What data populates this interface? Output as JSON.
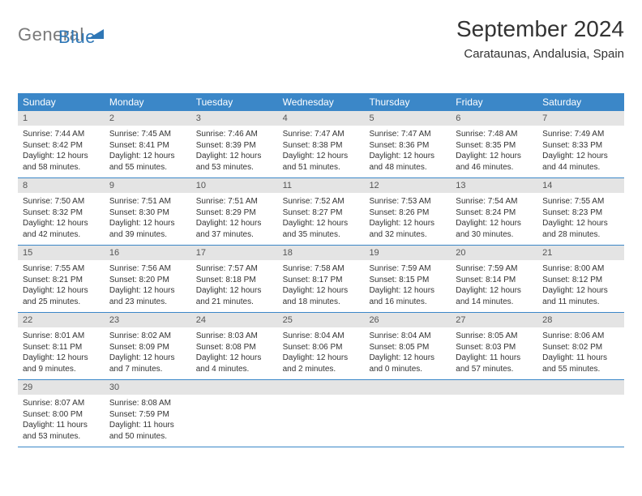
{
  "logo": {
    "gray": "General",
    "blue": "Blue"
  },
  "title": "September 2024",
  "location": "Carataunas, Andalusia, Spain",
  "colors": {
    "header_bg": "#3b87c8",
    "header_text": "#ffffff",
    "daynum_bg": "#e4e4e4",
    "daynum_text": "#555555",
    "body_text": "#333333",
    "logo_gray": "#7a7a7a",
    "logo_blue": "#2f77b6",
    "row_border": "#3b87c8"
  },
  "fonts": {
    "title_size": 28,
    "location_size": 15,
    "dow_size": 12,
    "daynum_size": 11,
    "body_size": 10
  },
  "dow": [
    "Sunday",
    "Monday",
    "Tuesday",
    "Wednesday",
    "Thursday",
    "Friday",
    "Saturday"
  ],
  "weeks": [
    [
      {
        "n": "1",
        "sr": "Sunrise: 7:44 AM",
        "ss": "Sunset: 8:42 PM",
        "dl1": "Daylight: 12 hours",
        "dl2": "and 58 minutes."
      },
      {
        "n": "2",
        "sr": "Sunrise: 7:45 AM",
        "ss": "Sunset: 8:41 PM",
        "dl1": "Daylight: 12 hours",
        "dl2": "and 55 minutes."
      },
      {
        "n": "3",
        "sr": "Sunrise: 7:46 AM",
        "ss": "Sunset: 8:39 PM",
        "dl1": "Daylight: 12 hours",
        "dl2": "and 53 minutes."
      },
      {
        "n": "4",
        "sr": "Sunrise: 7:47 AM",
        "ss": "Sunset: 8:38 PM",
        "dl1": "Daylight: 12 hours",
        "dl2": "and 51 minutes."
      },
      {
        "n": "5",
        "sr": "Sunrise: 7:47 AM",
        "ss": "Sunset: 8:36 PM",
        "dl1": "Daylight: 12 hours",
        "dl2": "and 48 minutes."
      },
      {
        "n": "6",
        "sr": "Sunrise: 7:48 AM",
        "ss": "Sunset: 8:35 PM",
        "dl1": "Daylight: 12 hours",
        "dl2": "and 46 minutes."
      },
      {
        "n": "7",
        "sr": "Sunrise: 7:49 AM",
        "ss": "Sunset: 8:33 PM",
        "dl1": "Daylight: 12 hours",
        "dl2": "and 44 minutes."
      }
    ],
    [
      {
        "n": "8",
        "sr": "Sunrise: 7:50 AM",
        "ss": "Sunset: 8:32 PM",
        "dl1": "Daylight: 12 hours",
        "dl2": "and 42 minutes."
      },
      {
        "n": "9",
        "sr": "Sunrise: 7:51 AM",
        "ss": "Sunset: 8:30 PM",
        "dl1": "Daylight: 12 hours",
        "dl2": "and 39 minutes."
      },
      {
        "n": "10",
        "sr": "Sunrise: 7:51 AM",
        "ss": "Sunset: 8:29 PM",
        "dl1": "Daylight: 12 hours",
        "dl2": "and 37 minutes."
      },
      {
        "n": "11",
        "sr": "Sunrise: 7:52 AM",
        "ss": "Sunset: 8:27 PM",
        "dl1": "Daylight: 12 hours",
        "dl2": "and 35 minutes."
      },
      {
        "n": "12",
        "sr": "Sunrise: 7:53 AM",
        "ss": "Sunset: 8:26 PM",
        "dl1": "Daylight: 12 hours",
        "dl2": "and 32 minutes."
      },
      {
        "n": "13",
        "sr": "Sunrise: 7:54 AM",
        "ss": "Sunset: 8:24 PM",
        "dl1": "Daylight: 12 hours",
        "dl2": "and 30 minutes."
      },
      {
        "n": "14",
        "sr": "Sunrise: 7:55 AM",
        "ss": "Sunset: 8:23 PM",
        "dl1": "Daylight: 12 hours",
        "dl2": "and 28 minutes."
      }
    ],
    [
      {
        "n": "15",
        "sr": "Sunrise: 7:55 AM",
        "ss": "Sunset: 8:21 PM",
        "dl1": "Daylight: 12 hours",
        "dl2": "and 25 minutes."
      },
      {
        "n": "16",
        "sr": "Sunrise: 7:56 AM",
        "ss": "Sunset: 8:20 PM",
        "dl1": "Daylight: 12 hours",
        "dl2": "and 23 minutes."
      },
      {
        "n": "17",
        "sr": "Sunrise: 7:57 AM",
        "ss": "Sunset: 8:18 PM",
        "dl1": "Daylight: 12 hours",
        "dl2": "and 21 minutes."
      },
      {
        "n": "18",
        "sr": "Sunrise: 7:58 AM",
        "ss": "Sunset: 8:17 PM",
        "dl1": "Daylight: 12 hours",
        "dl2": "and 18 minutes."
      },
      {
        "n": "19",
        "sr": "Sunrise: 7:59 AM",
        "ss": "Sunset: 8:15 PM",
        "dl1": "Daylight: 12 hours",
        "dl2": "and 16 minutes."
      },
      {
        "n": "20",
        "sr": "Sunrise: 7:59 AM",
        "ss": "Sunset: 8:14 PM",
        "dl1": "Daylight: 12 hours",
        "dl2": "and 14 minutes."
      },
      {
        "n": "21",
        "sr": "Sunrise: 8:00 AM",
        "ss": "Sunset: 8:12 PM",
        "dl1": "Daylight: 12 hours",
        "dl2": "and 11 minutes."
      }
    ],
    [
      {
        "n": "22",
        "sr": "Sunrise: 8:01 AM",
        "ss": "Sunset: 8:11 PM",
        "dl1": "Daylight: 12 hours",
        "dl2": "and 9 minutes."
      },
      {
        "n": "23",
        "sr": "Sunrise: 8:02 AM",
        "ss": "Sunset: 8:09 PM",
        "dl1": "Daylight: 12 hours",
        "dl2": "and 7 minutes."
      },
      {
        "n": "24",
        "sr": "Sunrise: 8:03 AM",
        "ss": "Sunset: 8:08 PM",
        "dl1": "Daylight: 12 hours",
        "dl2": "and 4 minutes."
      },
      {
        "n": "25",
        "sr": "Sunrise: 8:04 AM",
        "ss": "Sunset: 8:06 PM",
        "dl1": "Daylight: 12 hours",
        "dl2": "and 2 minutes."
      },
      {
        "n": "26",
        "sr": "Sunrise: 8:04 AM",
        "ss": "Sunset: 8:05 PM",
        "dl1": "Daylight: 12 hours",
        "dl2": "and 0 minutes."
      },
      {
        "n": "27",
        "sr": "Sunrise: 8:05 AM",
        "ss": "Sunset: 8:03 PM",
        "dl1": "Daylight: 11 hours",
        "dl2": "and 57 minutes."
      },
      {
        "n": "28",
        "sr": "Sunrise: 8:06 AM",
        "ss": "Sunset: 8:02 PM",
        "dl1": "Daylight: 11 hours",
        "dl2": "and 55 minutes."
      }
    ],
    [
      {
        "n": "29",
        "sr": "Sunrise: 8:07 AM",
        "ss": "Sunset: 8:00 PM",
        "dl1": "Daylight: 11 hours",
        "dl2": "and 53 minutes."
      },
      {
        "n": "30",
        "sr": "Sunrise: 8:08 AM",
        "ss": "Sunset: 7:59 PM",
        "dl1": "Daylight: 11 hours",
        "dl2": "and 50 minutes."
      },
      {
        "n": "",
        "sr": "",
        "ss": "",
        "dl1": "",
        "dl2": ""
      },
      {
        "n": "",
        "sr": "",
        "ss": "",
        "dl1": "",
        "dl2": ""
      },
      {
        "n": "",
        "sr": "",
        "ss": "",
        "dl1": "",
        "dl2": ""
      },
      {
        "n": "",
        "sr": "",
        "ss": "",
        "dl1": "",
        "dl2": ""
      },
      {
        "n": "",
        "sr": "",
        "ss": "",
        "dl1": "",
        "dl2": ""
      }
    ]
  ]
}
